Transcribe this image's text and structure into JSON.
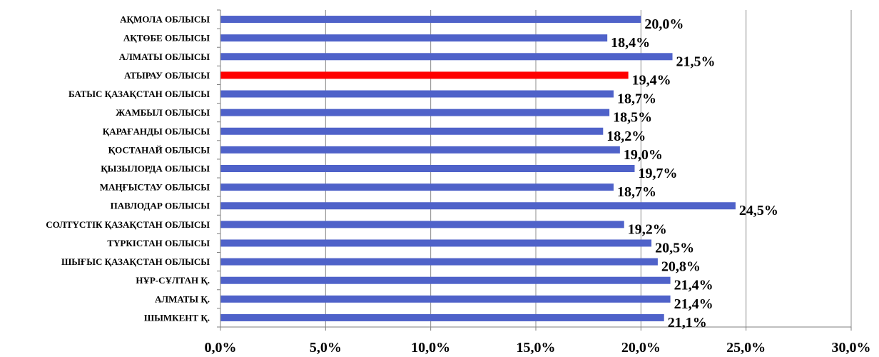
{
  "chart_data": {
    "type": "bar",
    "orientation": "horizontal",
    "categories": [
      "АҚМОЛА ОБЛЫСЫ",
      "АҚТӨБЕ ОБЛЫСЫ",
      "АЛМАТЫ ОБЛЫСЫ",
      "АТЫРАУ ОБЛЫСЫ",
      "БАТЫС ҚАЗАҚСТАН ОБЛЫСЫ",
      "ЖАМБЫЛ ОБЛЫСЫ",
      "ҚАРАҒАНДЫ ОБЛЫСЫ",
      "ҚОСТАНАЙ ОБЛЫСЫ",
      "ҚЫЗЫЛОРДА ОБЛЫСЫ",
      "МАҢҒЫСТАУ ОБЛЫСЫ",
      "ПАВЛОДАР ОБЛЫСЫ",
      "СОЛТҮСТІК ҚАЗАҚСТАН ОБЛЫСЫ",
      "ТҮРКІСТАН ОБЛЫСЫ",
      "ШЫҒЫС ҚАЗАҚСТАН ОБЛЫСЫ",
      "НҰР-СҰЛТАН Қ.",
      "АЛМАТЫ Қ.",
      "ШЫМКЕНТ Қ."
    ],
    "values": [
      20.0,
      18.4,
      21.5,
      19.4,
      18.7,
      18.5,
      18.2,
      19.0,
      19.7,
      18.7,
      24.5,
      19.2,
      20.5,
      20.8,
      21.4,
      21.4,
      21.1
    ],
    "data_labels": [
      "20,0%",
      "18,4%",
      "21,5%",
      "19,4%",
      "18,7%",
      "18,5%",
      "18,2%",
      "19,0%",
      "19,7%",
      "18,7%",
      "24,5%",
      "19,2%",
      "20,5%",
      "20,8%",
      "21,4%",
      "21,4%",
      "21,1%"
    ],
    "highlight_index": 3,
    "xlim": [
      0,
      30
    ],
    "x_ticks": [
      0,
      5,
      10,
      15,
      20,
      25,
      30
    ],
    "x_tick_labels": [
      "0,0%",
      "5,0%",
      "10,0%",
      "15,0%",
      "20,0%",
      "25,0%",
      "30,0%"
    ],
    "title": "",
    "xlabel": "",
    "ylabel": "",
    "grid": "vertical",
    "legend": "none",
    "colors": {
      "bar": "#4F62C9",
      "highlight": "#FF0000",
      "grid": "#8C8C8C",
      "axis": "#7F7F7F"
    }
  }
}
